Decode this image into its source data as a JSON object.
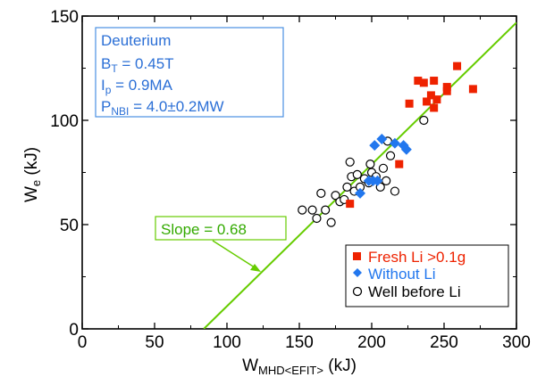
{
  "chart_data": {
    "type": "scatter",
    "xlabel": {
      "main": "W",
      "sub": "MHD<EFIT>",
      "tail": " (kJ)"
    },
    "ylabel": {
      "main": "W",
      "sub": "e",
      "tail": " (kJ)"
    },
    "xlim": [
      0,
      300
    ],
    "ylim": [
      0,
      150
    ],
    "xticks": [
      0,
      50,
      100,
      150,
      200,
      250,
      300
    ],
    "yticks": [
      0,
      50,
      100,
      150
    ],
    "grid": false,
    "legend_position": "bottom-right",
    "info_box": {
      "line1": "Deuterium",
      "line2": {
        "main": "B",
        "sub": "T",
        "tail": " = 0.45T"
      },
      "line3": {
        "main": "I",
        "sub": "p",
        "tail": " = 0.9MA"
      },
      "line4": {
        "main": "P",
        "sub": "NBI",
        "tail": " = 4.0±0.2MW"
      }
    },
    "fit_line": {
      "label": "Slope = 0.68",
      "slope": 0.68,
      "x_intercept": 84,
      "x_end": 300,
      "color": "#66cc00"
    },
    "series": [
      {
        "name": "Fresh Li >0.1g",
        "marker": "square",
        "color": "#ee2200",
        "points": [
          [
            185,
            60
          ],
          [
            219,
            79
          ],
          [
            226,
            108
          ],
          [
            232,
            119
          ],
          [
            236,
            118
          ],
          [
            238,
            109
          ],
          [
            241,
            112
          ],
          [
            243,
            119
          ],
          [
            243,
            106
          ],
          [
            245,
            110
          ],
          [
            252,
            116
          ],
          [
            252,
            114
          ],
          [
            259,
            126
          ],
          [
            270,
            115
          ]
        ]
      },
      {
        "name": "Without Li",
        "marker": "diamond",
        "color": "#2277ee",
        "points": [
          [
            192,
            65
          ],
          [
            198,
            71
          ],
          [
            201,
            71
          ],
          [
            202,
            88
          ],
          [
            204,
            71
          ],
          [
            207,
            91
          ],
          [
            216,
            89
          ],
          [
            222,
            88
          ],
          [
            224,
            86
          ]
        ]
      },
      {
        "name": "Well before Li",
        "marker": "circle",
        "color": "#000000",
        "points": [
          [
            152,
            57
          ],
          [
            159,
            57
          ],
          [
            162,
            53
          ],
          [
            165,
            65
          ],
          [
            168,
            57
          ],
          [
            172,
            51
          ],
          [
            175,
            64
          ],
          [
            178,
            61
          ],
          [
            181,
            62
          ],
          [
            183,
            68
          ],
          [
            185,
            80
          ],
          [
            186,
            73
          ],
          [
            188,
            66
          ],
          [
            190,
            74
          ],
          [
            192,
            68
          ],
          [
            195,
            72
          ],
          [
            198,
            70
          ],
          [
            199,
            79
          ],
          [
            200,
            75
          ],
          [
            203,
            73
          ],
          [
            206,
            68
          ],
          [
            208,
            77
          ],
          [
            210,
            71
          ],
          [
            211,
            90
          ],
          [
            213,
            83
          ],
          [
            216,
            66
          ],
          [
            236,
            100
          ]
        ]
      }
    ]
  }
}
